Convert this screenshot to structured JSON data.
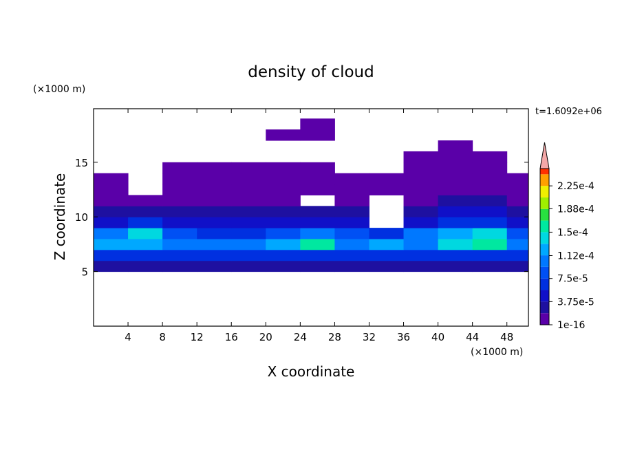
{
  "chart_data": {
    "type": "contour",
    "title": "density of cloud",
    "x_label": "X coordinate",
    "y_label": "Z coordinate",
    "x_unit": "(×1000 m)",
    "y_unit": "(×1000 m)",
    "time_label": "t=1.6092e+06",
    "xlim": [
      0,
      50.5
    ],
    "ylim": [
      0,
      19.9
    ],
    "xticks": [
      4,
      8,
      12,
      16,
      20,
      24,
      28,
      32,
      36,
      40,
      44,
      48
    ],
    "yticks": [
      5,
      10,
      15
    ],
    "x": [
      2,
      6,
      10,
      14,
      18,
      22,
      26,
      30,
      34,
      38,
      42,
      46,
      50
    ],
    "y": [
      5.5,
      6.5,
      7.5,
      8.5,
      9.5,
      10.5,
      11.5,
      12.5,
      13.5,
      14.5,
      15.5,
      16.5,
      17.5,
      18.5
    ],
    "z": [
      [
        3e-05,
        3e-05,
        3e-05,
        3e-05,
        3e-05,
        3e-05,
        3e-05,
        3e-05,
        3e-05,
        3e-05,
        3e-05,
        3e-05,
        3e-05
      ],
      [
        7e-05,
        6e-05,
        6e-05,
        7e-05,
        6e-05,
        7e-05,
        7e-05,
        6e-05,
        6e-05,
        7e-05,
        7e-05,
        7e-05,
        6e-05
      ],
      [
        0.00012,
        0.00013,
        0.0001,
        0.00011,
        0.0001,
        0.00012,
        0.00015,
        0.00011,
        0.00012,
        0.00011,
        0.00014,
        0.00016,
        0.00011
      ],
      [
        0.00011,
        0.00014,
        8e-05,
        7e-05,
        6e-05,
        9e-05,
        0.00011,
        8e-05,
        7e-05,
        0.0001,
        0.00013,
        0.00014,
        9e-05
      ],
      [
        5e-05,
        6e-05,
        5e-05,
        4e-05,
        4e-05,
        4e-05,
        5e-05,
        5e-05,
        null,
        5e-05,
        6e-05,
        6e-05,
        5e-05
      ],
      [
        3e-05,
        3e-05,
        3e-05,
        3e-05,
        2e-05,
        2e-05,
        3e-05,
        3e-05,
        null,
        3e-05,
        4e-05,
        4e-05,
        3e-05
      ],
      [
        1.5e-05,
        1.5e-05,
        1.5e-05,
        1.5e-05,
        1e-05,
        1e-05,
        null,
        1e-05,
        null,
        1.5e-05,
        2e-05,
        2e-05,
        1.5e-05
      ],
      [
        5e-06,
        null,
        5e-06,
        8e-06,
        5e-06,
        5e-06,
        5e-06,
        5e-06,
        5e-06,
        8e-06,
        1e-05,
        1e-05,
        8e-06
      ],
      [
        5e-06,
        null,
        3e-06,
        5e-06,
        3e-06,
        3e-06,
        3e-06,
        3e-06,
        5e-06,
        5e-06,
        6e-06,
        6e-06,
        5e-06
      ],
      [
        null,
        null,
        2e-06,
        2e-06,
        2e-06,
        2e-06,
        2e-06,
        null,
        null,
        3e-06,
        3e-06,
        3e-06,
        null
      ],
      [
        null,
        null,
        null,
        null,
        null,
        null,
        null,
        null,
        null,
        2e-06,
        2e-06,
        2e-06,
        null
      ],
      [
        null,
        null,
        null,
        null,
        null,
        null,
        null,
        null,
        null,
        null,
        1e-06,
        null,
        null
      ],
      [
        null,
        null,
        null,
        null,
        null,
        1e-06,
        1e-06,
        null,
        null,
        null,
        null,
        null,
        null
      ],
      [
        null,
        null,
        null,
        null,
        null,
        null,
        1e-06,
        null,
        null,
        null,
        null,
        null,
        null
      ]
    ],
    "clim": [
      1e-16,
      0.000253
    ],
    "cticks": [
      {
        "value": 1e-16,
        "label": "1e-16"
      },
      {
        "value": 3.75e-05,
        "label": "3.75e-5"
      },
      {
        "value": 7.5e-05,
        "label": "7.5e-5"
      },
      {
        "value": 0.000112,
        "label": "1.12e-4"
      },
      {
        "value": 0.00015,
        "label": "1.5e-4"
      },
      {
        "value": 0.000188,
        "label": "1.88e-4"
      },
      {
        "value": 0.000225,
        "label": "2.25e-4"
      }
    ],
    "colors": [
      "#5a00a8",
      "#1e10a0",
      "#1010c8",
      "#0030e0",
      "#0050f4",
      "#0078ff",
      "#00a8ff",
      "#00d8e0",
      "#00e8a0",
      "#28e040",
      "#a0f000",
      "#f0f000",
      "#ffa000",
      "#ff3000"
    ],
    "over_color": "#f4a8a8"
  }
}
